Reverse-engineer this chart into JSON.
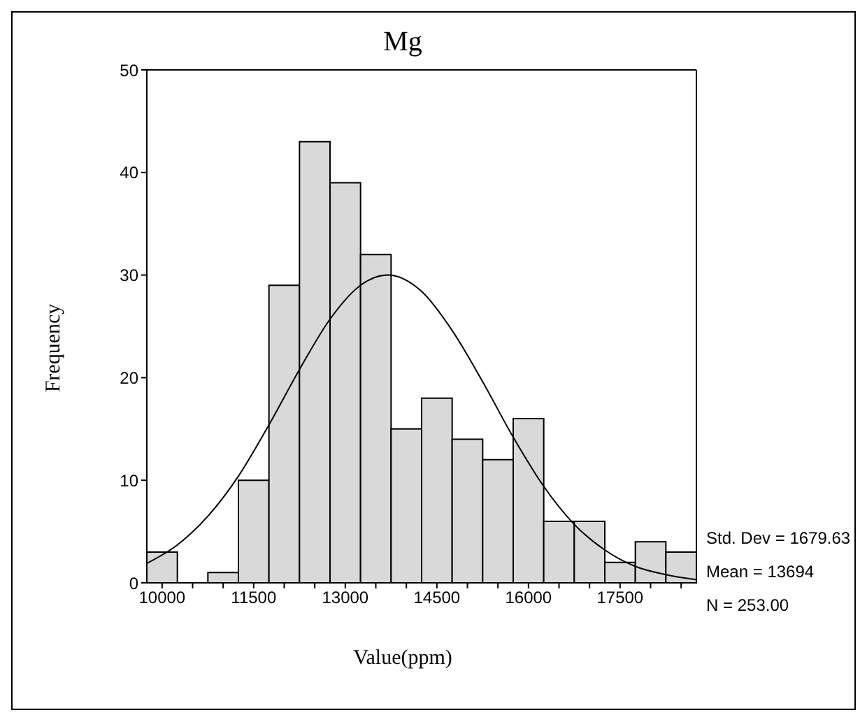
{
  "chart_data": {
    "type": "histogram",
    "title": "Mg",
    "xlabel": "Value(ppm)",
    "ylabel": "Frequency",
    "bins": [
      9750,
      10250,
      10750,
      11250,
      11750,
      12250,
      12750,
      13250,
      13750,
      14250,
      14750,
      15250,
      15750,
      16250,
      16750,
      17250,
      17750,
      18250,
      18750
    ],
    "values": [
      3,
      0,
      1,
      10,
      29,
      43,
      39,
      32,
      15,
      18,
      14,
      12,
      16,
      6,
      6,
      2,
      4,
      3
    ],
    "color": "#d9d9d9",
    "series": [
      {
        "type": "line",
        "color": "#000000",
        "x": [
          9750,
          10250,
          10750,
          11250,
          11750,
          12250,
          12750,
          13250,
          13694,
          14250,
          14750,
          15250,
          15750,
          16250,
          16750,
          17250,
          17750,
          18250,
          18750
        ],
        "values": [
          1.9,
          3.7,
          6.5,
          10.4,
          15.4,
          20.8,
          25.7,
          29.0,
          30.0,
          28.4,
          24.6,
          19.6,
          14.2,
          9.4,
          5.7,
          3.2,
          1.6,
          0.8,
          0.3
        ]
      }
    ],
    "xlim": [
      9750,
      18750
    ],
    "xticks": [
      10000,
      {
        "value": 10500,
        "label": null
      },
      {
        "value": 11000,
        "label": null
      },
      11500,
      {
        "value": 12000,
        "label": null
      },
      {
        "value": 12500,
        "label": null
      },
      13000,
      {
        "value": 13500,
        "label": null
      },
      {
        "value": 14000,
        "label": null
      },
      14500,
      {
        "value": 15000,
        "label": null
      },
      {
        "value": 15500,
        "label": null
      },
      16000,
      {
        "value": 16500,
        "label": null
      },
      {
        "value": 17000,
        "label": null
      },
      17500,
      {
        "value": 18000,
        "label": null
      },
      {
        "value": 18500,
        "label": null
      }
    ],
    "ylim": [
      0,
      50
    ],
    "yticks": [
      0,
      10,
      20,
      30,
      40,
      50
    ],
    "annotations": [
      "Std. Dev = 1679.63",
      "Mean = 13694",
      "N = 253.00"
    ]
  }
}
